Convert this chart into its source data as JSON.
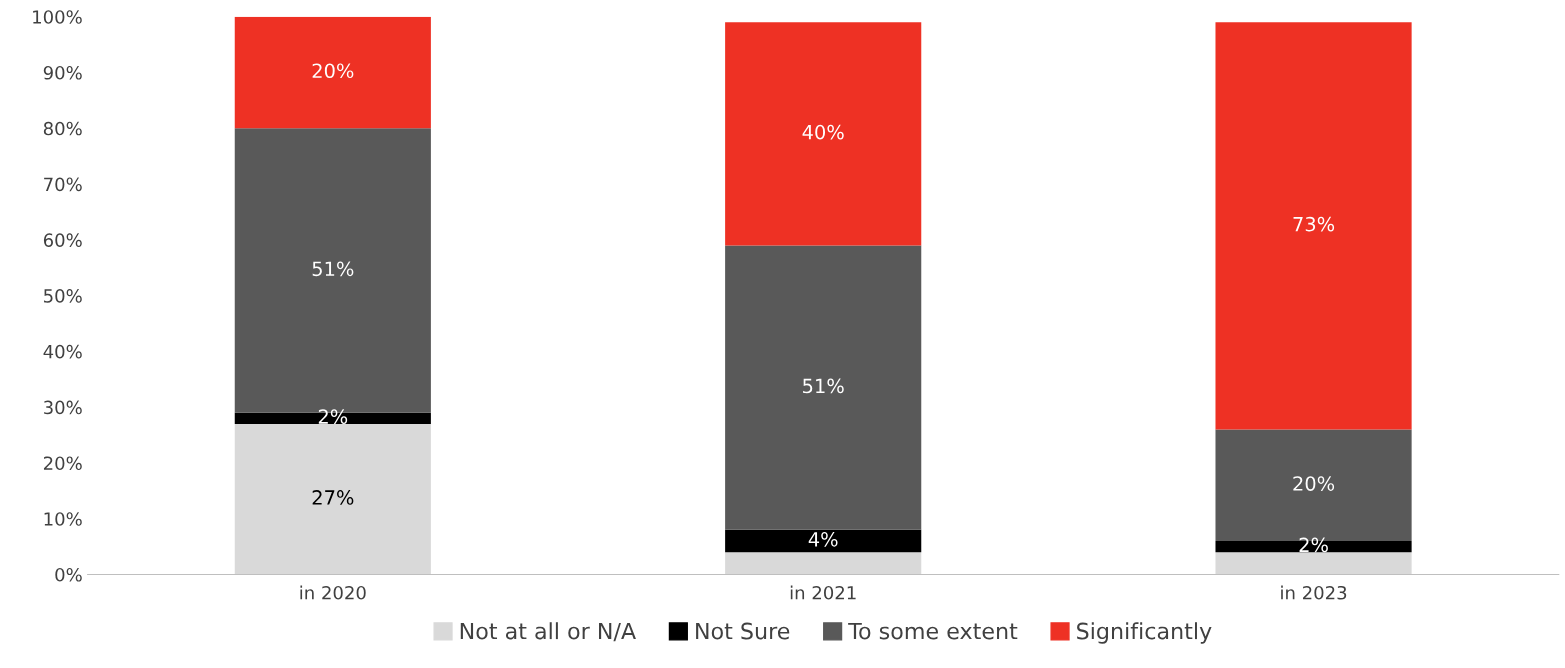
{
  "chart_data": {
    "type": "bar",
    "stacked": true,
    "categories": [
      "in 2020",
      "in 2021",
      "in 2023"
    ],
    "series": [
      {
        "name": "Not at all or N/A",
        "color": "#d9d9d9",
        "values": [
          27,
          4,
          4
        ],
        "value_labels": [
          "27%",
          null,
          null
        ]
      },
      {
        "name": "Not Sure",
        "color": "#000000",
        "values": [
          2,
          4,
          2
        ],
        "value_labels": [
          "2%",
          "4%",
          "2%"
        ]
      },
      {
        "name": "To some extent",
        "color": "#595959",
        "values": [
          51,
          51,
          20
        ],
        "value_labels": [
          "51%",
          "51%",
          "20%"
        ]
      },
      {
        "name": "Significantly",
        "color": "#ee3124",
        "values": [
          20,
          40,
          73
        ],
        "value_labels": [
          "20%",
          "40%",
          "73%"
        ]
      }
    ],
    "ylim": [
      0,
      100
    ],
    "yticks": [
      {
        "value": 0,
        "label": "0%"
      },
      {
        "value": 10,
        "label": "10%"
      },
      {
        "value": 20,
        "label": "20%"
      },
      {
        "value": 30,
        "label": "30%"
      },
      {
        "value": 40,
        "label": "40%"
      },
      {
        "value": 50,
        "label": "50%"
      },
      {
        "value": 60,
        "label": "60%"
      },
      {
        "value": 70,
        "label": "70%"
      },
      {
        "value": 80,
        "label": "80%"
      },
      {
        "value": 90,
        "label": "90%"
      },
      {
        "value": 100,
        "label": "100%"
      }
    ],
    "grid": false,
    "legend": "bottom"
  }
}
